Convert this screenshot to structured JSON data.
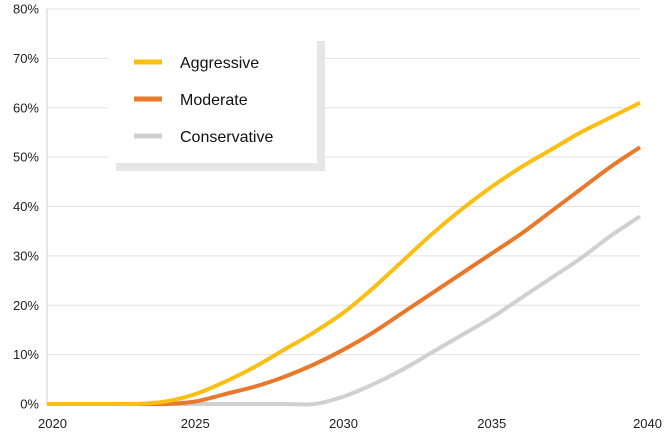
{
  "chart_data": {
    "type": "line",
    "title": "",
    "xlabel": "",
    "ylabel": "",
    "xlim": [
      2020,
      2040
    ],
    "ylim": [
      0,
      80
    ],
    "x_ticks": [
      2020,
      2025,
      2030,
      2035,
      2040
    ],
    "x_tick_labels": [
      "2020",
      "2025",
      "2030",
      "2035",
      "2040"
    ],
    "y_ticks": [
      0,
      10,
      20,
      30,
      40,
      50,
      60,
      70,
      80
    ],
    "y_tick_labels": [
      "0%",
      "10%",
      "20%",
      "30%",
      "40%",
      "50%",
      "60%",
      "70%",
      "80%"
    ],
    "grid": "horizontal",
    "legend_position": "top-left",
    "x": [
      2020,
      2021,
      2022,
      2023,
      2024,
      2025,
      2026,
      2027,
      2028,
      2029,
      2030,
      2031,
      2032,
      2033,
      2034,
      2035,
      2036,
      2037,
      2038,
      2039,
      2040
    ],
    "series": [
      {
        "name": "Aggressive",
        "color": "#fbbf14",
        "values": [
          0,
          0,
          0,
          0,
          0.5,
          2,
          4.5,
          7.5,
          11,
          14.5,
          18.5,
          23.5,
          29,
          34.5,
          39.5,
          44,
          48,
          51.5,
          55,
          58,
          61
        ]
      },
      {
        "name": "Moderate",
        "color": "#e8782c",
        "values": [
          0,
          0,
          0,
          0,
          0,
          0.5,
          2,
          3.5,
          5.5,
          8,
          11,
          14.5,
          18.5,
          22.5,
          26.5,
          30.5,
          34.5,
          39,
          43.5,
          48,
          52
        ]
      },
      {
        "name": "Conservative",
        "color": "#d0d0d0",
        "values": [
          0,
          0,
          0,
          0,
          0,
          0,
          0,
          0,
          0,
          0,
          1.5,
          4,
          7,
          10.5,
          14,
          17.5,
          21.5,
          25.5,
          29.5,
          34,
          38
        ]
      }
    ]
  }
}
